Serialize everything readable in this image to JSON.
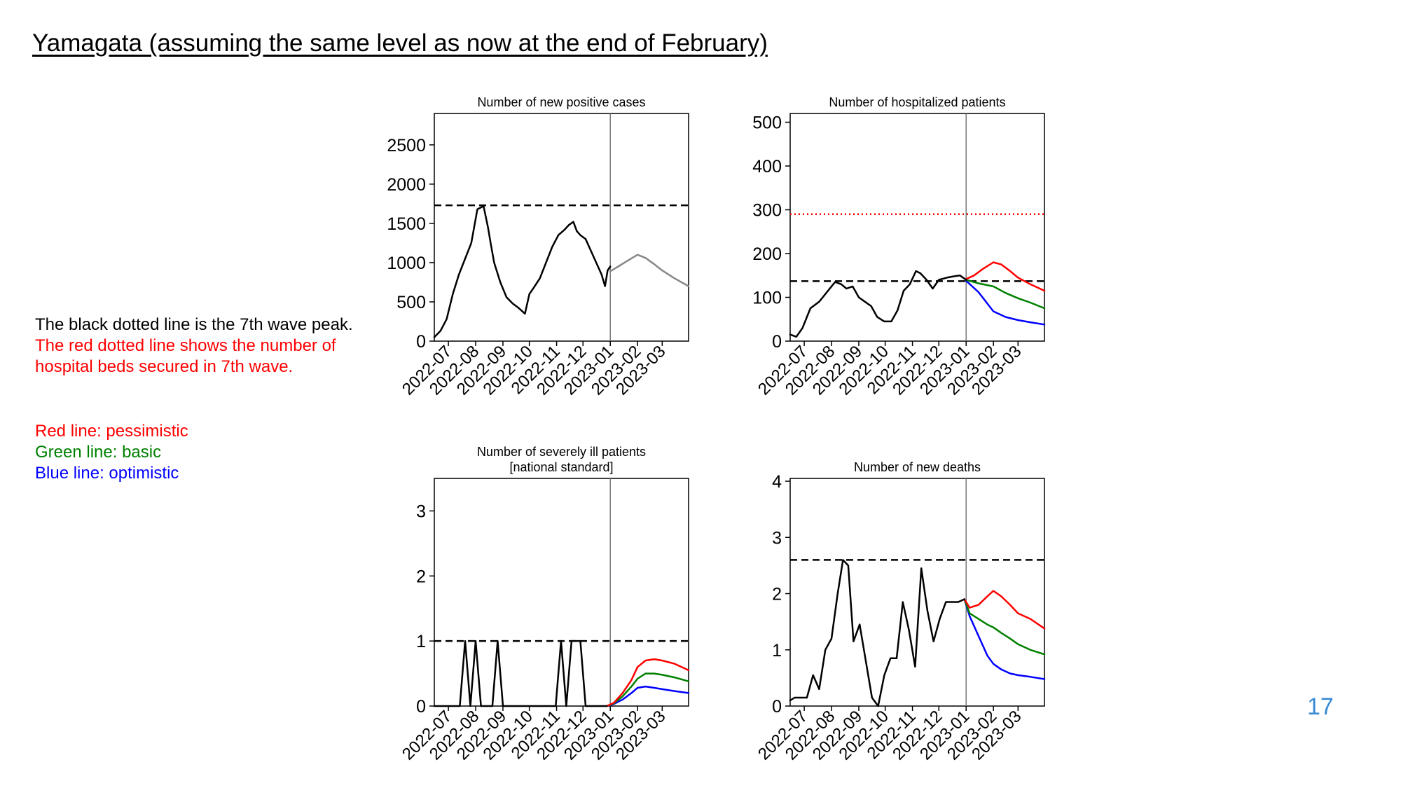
{
  "slide": {
    "title": "Yamagata (assuming the same level as now at the end of February)",
    "page_number": "17",
    "notes": {
      "black_line": "The black dotted line is the 7th wave peak.",
      "red_line_1": "The red dotted line shows the number of",
      "red_line_2": "hospital beds secured in 7th wave.",
      "legend_red": "Red line: pessimistic",
      "legend_green": "Green line: basic",
      "legend_blue": "Blue line: optimistic"
    }
  },
  "colors": {
    "observed": "#000000",
    "projection": "#888888",
    "pessimistic": "#ff0000",
    "basic": "#008000",
    "optimistic": "#0000ff",
    "page_number": "#3a8bd4"
  },
  "chart_data": [
    {
      "id": "new-positive-cases",
      "type": "line",
      "title": [
        "Number of new positive cases"
      ],
      "x_range": [
        "2022-06-15",
        "2023-03-31"
      ],
      "x_ticks": [
        "2022-07",
        "2022-08",
        "2022-09",
        "2022-10",
        "2022-11",
        "2022-12",
        "2023-01",
        "2023-02",
        "2023-03"
      ],
      "y_ticks": [
        0,
        500,
        1000,
        1500,
        2000,
        2500
      ],
      "ylim": [
        0,
        2900
      ],
      "vline": "2023-01-01",
      "hline": 1730,
      "series": [
        {
          "role": "observed",
          "x": [
            "2022-06-15",
            "2022-06-22",
            "2022-06-29",
            "2022-07-06",
            "2022-07-13",
            "2022-07-20",
            "2022-07-27",
            "2022-08-03",
            "2022-08-10",
            "2022-08-15",
            "2022-08-18",
            "2022-08-22",
            "2022-08-29",
            "2022-09-05",
            "2022-09-12",
            "2022-09-19",
            "2022-09-26",
            "2022-10-01",
            "2022-10-06",
            "2022-10-13",
            "2022-10-20",
            "2022-10-27",
            "2022-11-03",
            "2022-11-10",
            "2022-11-15",
            "2022-11-20",
            "2022-11-24",
            "2022-11-28",
            "2022-12-04",
            "2022-12-10",
            "2022-12-16",
            "2022-12-22",
            "2022-12-26",
            "2022-12-29",
            "2023-01-01"
          ],
          "values": [
            50,
            130,
            280,
            600,
            850,
            1050,
            1250,
            1680,
            1720,
            1450,
            1250,
            1000,
            750,
            560,
            480,
            420,
            350,
            600,
            680,
            800,
            1000,
            1200,
            1350,
            1420,
            1480,
            1520,
            1400,
            1350,
            1300,
            1150,
            1000,
            850,
            700,
            900,
            950
          ]
        },
        {
          "role": "projection",
          "x": [
            "2023-01-01",
            "2023-01-10",
            "2023-01-20",
            "2023-02-01",
            "2023-02-10",
            "2023-02-20",
            "2023-03-01",
            "2023-03-15",
            "2023-03-31"
          ],
          "values": [
            890,
            950,
            1020,
            1100,
            1060,
            980,
            900,
            800,
            700
          ]
        }
      ]
    },
    {
      "id": "hospitalized-patients",
      "type": "line",
      "title": [
        "Number of hospitalized patients"
      ],
      "x_range": [
        "2022-06-15",
        "2023-03-31"
      ],
      "x_ticks": [
        "2022-07",
        "2022-08",
        "2022-09",
        "2022-10",
        "2022-11",
        "2022-12",
        "2023-01",
        "2023-02",
        "2023-03"
      ],
      "y_ticks": [
        0,
        100,
        200,
        300,
        400,
        500
      ],
      "ylim": [
        0,
        520
      ],
      "vline": "2023-01-01",
      "hline": 137,
      "hline_red": 290,
      "series": [
        {
          "role": "observed",
          "x": [
            "2022-06-15",
            "2022-06-22",
            "2022-06-29",
            "2022-07-08",
            "2022-07-18",
            "2022-07-28",
            "2022-08-05",
            "2022-08-12",
            "2022-08-18",
            "2022-08-25",
            "2022-09-01",
            "2022-09-08",
            "2022-09-15",
            "2022-09-22",
            "2022-09-30",
            "2022-10-08",
            "2022-10-15",
            "2022-10-22",
            "2022-10-29",
            "2022-11-05",
            "2022-11-10",
            "2022-11-17",
            "2022-11-24",
            "2022-12-01",
            "2022-12-10",
            "2022-12-18",
            "2022-12-25",
            "2023-01-01"
          ],
          "values": [
            15,
            10,
            30,
            75,
            90,
            115,
            135,
            130,
            120,
            125,
            100,
            90,
            80,
            55,
            45,
            45,
            70,
            115,
            130,
            160,
            155,
            140,
            120,
            140,
            145,
            148,
            150,
            140
          ]
        },
        {
          "role": "pessimistic",
          "x": [
            "2023-01-01",
            "2023-01-10",
            "2023-01-20",
            "2023-02-01",
            "2023-02-10",
            "2023-02-20",
            "2023-03-01",
            "2023-03-15",
            "2023-03-31"
          ],
          "values": [
            142,
            150,
            165,
            180,
            175,
            160,
            145,
            130,
            115
          ]
        },
        {
          "role": "basic",
          "x": [
            "2023-01-01",
            "2023-01-15",
            "2023-02-01",
            "2023-02-15",
            "2023-03-01",
            "2023-03-15",
            "2023-03-31"
          ],
          "values": [
            140,
            132,
            125,
            110,
            98,
            88,
            75
          ]
        },
        {
          "role": "optimistic",
          "x": [
            "2023-01-01",
            "2023-01-15",
            "2023-02-01",
            "2023-02-15",
            "2023-03-01",
            "2023-03-15",
            "2023-03-31"
          ],
          "values": [
            138,
            112,
            68,
            55,
            48,
            43,
            38
          ]
        }
      ]
    },
    {
      "id": "severely-ill-patients",
      "type": "line",
      "title": [
        "Number of severely ill patients",
        "[national standard]"
      ],
      "x_range": [
        "2022-06-15",
        "2023-03-31"
      ],
      "x_ticks": [
        "2022-07",
        "2022-08",
        "2022-09",
        "2022-10",
        "2022-11",
        "2022-12",
        "2023-01",
        "2023-02",
        "2023-03"
      ],
      "y_ticks": [
        0,
        1,
        2,
        3
      ],
      "ylim": [
        0,
        3.5
      ],
      "vline": "2023-01-01",
      "hline": 1,
      "series": [
        {
          "role": "observed",
          "x": [
            "2022-06-15",
            "2022-07-14",
            "2022-07-20",
            "2022-07-26",
            "2022-08-01",
            "2022-08-07",
            "2022-08-20",
            "2022-08-26",
            "2022-09-01",
            "2022-10-31",
            "2022-11-06",
            "2022-11-12",
            "2022-11-18",
            "2022-11-28",
            "2022-12-04",
            "2022-12-28"
          ],
          "values": [
            0,
            0,
            1,
            0,
            1,
            0,
            0,
            1,
            0,
            0,
            1,
            0,
            1,
            1,
            0,
            0
          ]
        },
        {
          "role": "pessimistic",
          "x": [
            "2022-12-28",
            "2023-01-05",
            "2023-01-15",
            "2023-01-25",
            "2023-02-01",
            "2023-02-10",
            "2023-02-20",
            "2023-03-01",
            "2023-03-15",
            "2023-03-31"
          ],
          "values": [
            0,
            0.05,
            0.2,
            0.4,
            0.6,
            0.7,
            0.72,
            0.7,
            0.65,
            0.55
          ]
        },
        {
          "role": "basic",
          "x": [
            "2022-12-28",
            "2023-01-05",
            "2023-01-15",
            "2023-01-25",
            "2023-02-01",
            "2023-02-10",
            "2023-02-20",
            "2023-03-01",
            "2023-03-15",
            "2023-03-31"
          ],
          "values": [
            0,
            0.04,
            0.15,
            0.3,
            0.42,
            0.5,
            0.5,
            0.48,
            0.44,
            0.38
          ]
        },
        {
          "role": "optimistic",
          "x": [
            "2022-12-28",
            "2023-01-05",
            "2023-01-15",
            "2023-01-25",
            "2023-02-01",
            "2023-02-10",
            "2023-02-20",
            "2023-03-01",
            "2023-03-15",
            "2023-03-31"
          ],
          "values": [
            0,
            0.03,
            0.1,
            0.2,
            0.28,
            0.3,
            0.28,
            0.26,
            0.23,
            0.2
          ]
        }
      ]
    },
    {
      "id": "new-deaths",
      "type": "line",
      "title": [
        "Number of new deaths"
      ],
      "x_range": [
        "2022-06-15",
        "2023-03-31"
      ],
      "x_ticks": [
        "2022-07",
        "2022-08",
        "2022-09",
        "2022-10",
        "2022-11",
        "2022-12",
        "2023-01",
        "2023-02",
        "2023-03"
      ],
      "y_ticks": [
        0,
        1,
        2,
        3,
        4
      ],
      "ylim": [
        0,
        4.05
      ],
      "vline": "2023-01-01",
      "hline": 2.6,
      "series": [
        {
          "role": "observed",
          "x": [
            "2022-06-15",
            "2022-06-20",
            "2022-06-27",
            "2022-07-04",
            "2022-07-11",
            "2022-07-18",
            "2022-07-25",
            "2022-08-01",
            "2022-08-08",
            "2022-08-14",
            "2022-08-20",
            "2022-08-26",
            "2022-09-02",
            "2022-09-09",
            "2022-09-16",
            "2022-09-23",
            "2022-09-30",
            "2022-10-07",
            "2022-10-14",
            "2022-10-21",
            "2022-10-28",
            "2022-11-04",
            "2022-11-11",
            "2022-11-18",
            "2022-11-25",
            "2022-12-02",
            "2022-12-09",
            "2022-12-16",
            "2022-12-23",
            "2022-12-30"
          ],
          "values": [
            0.1,
            0.15,
            0.15,
            0.15,
            0.55,
            0.3,
            1.0,
            1.2,
            2.0,
            2.6,
            2.5,
            1.15,
            1.45,
            0.8,
            0.15,
            0.0,
            0.55,
            0.85,
            0.85,
            1.85,
            1.35,
            0.7,
            2.45,
            1.7,
            1.15,
            1.55,
            1.85,
            1.85,
            1.85,
            1.9
          ]
        },
        {
          "role": "pessimistic",
          "x": [
            "2022-12-30",
            "2023-01-05",
            "2023-01-15",
            "2023-01-25",
            "2023-02-01",
            "2023-02-10",
            "2023-02-20",
            "2023-03-01",
            "2023-03-15",
            "2023-03-31"
          ],
          "values": [
            1.9,
            1.75,
            1.8,
            1.95,
            2.05,
            1.95,
            1.8,
            1.65,
            1.55,
            1.38
          ]
        },
        {
          "role": "basic",
          "x": [
            "2022-12-30",
            "2023-01-05",
            "2023-01-15",
            "2023-01-25",
            "2023-02-01",
            "2023-02-10",
            "2023-02-20",
            "2023-03-01",
            "2023-03-15",
            "2023-03-31"
          ],
          "values": [
            1.9,
            1.65,
            1.55,
            1.45,
            1.4,
            1.3,
            1.2,
            1.1,
            1.0,
            0.92
          ]
        },
        {
          "role": "optimistic",
          "x": [
            "2022-12-30",
            "2023-01-05",
            "2023-01-15",
            "2023-01-25",
            "2023-02-01",
            "2023-02-10",
            "2023-02-20",
            "2023-03-01",
            "2023-03-15",
            "2023-03-31"
          ],
          "values": [
            1.9,
            1.6,
            1.25,
            0.9,
            0.75,
            0.65,
            0.58,
            0.55,
            0.52,
            0.48
          ]
        }
      ]
    }
  ]
}
